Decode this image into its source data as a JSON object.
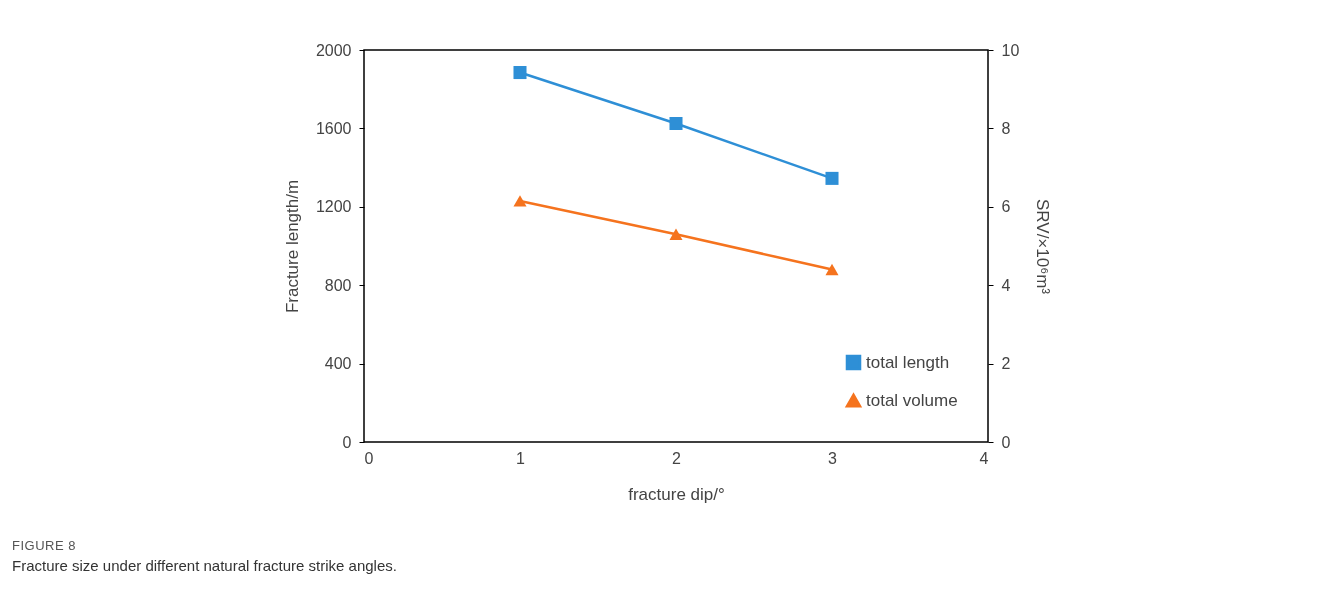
{
  "chart_data": {
    "type": "line",
    "xlabel": "fracture dip/°",
    "ylabel": "Fracture length/m",
    "y2label": "SRV/×10⁶m³",
    "x": [
      1,
      2,
      3
    ],
    "series": [
      {
        "name": "total length",
        "color": "#2e8fd6",
        "marker": "square",
        "values": [
          1885,
          1625,
          1345
        ]
      },
      {
        "name": "total volume",
        "color": "#f5731e",
        "marker": "triangle",
        "axis": "y2",
        "values": [
          6.15,
          5.3,
          4.4
        ]
      }
    ],
    "xlim": [
      0,
      4
    ],
    "xticks": [
      0,
      1,
      2,
      3,
      4
    ],
    "ylim": [
      0,
      2000
    ],
    "yticks": [
      0,
      400,
      800,
      1200,
      1600,
      2000
    ],
    "y2lim": [
      0,
      10
    ],
    "y2ticks": [
      0,
      2,
      4,
      6,
      8,
      10
    ],
    "grid": false,
    "legend": "bottom right",
    "line_style": "solid",
    "annotations": [
      "FIGURE 8",
      "Fracture size under different natural fracture strike angles."
    ]
  }
}
